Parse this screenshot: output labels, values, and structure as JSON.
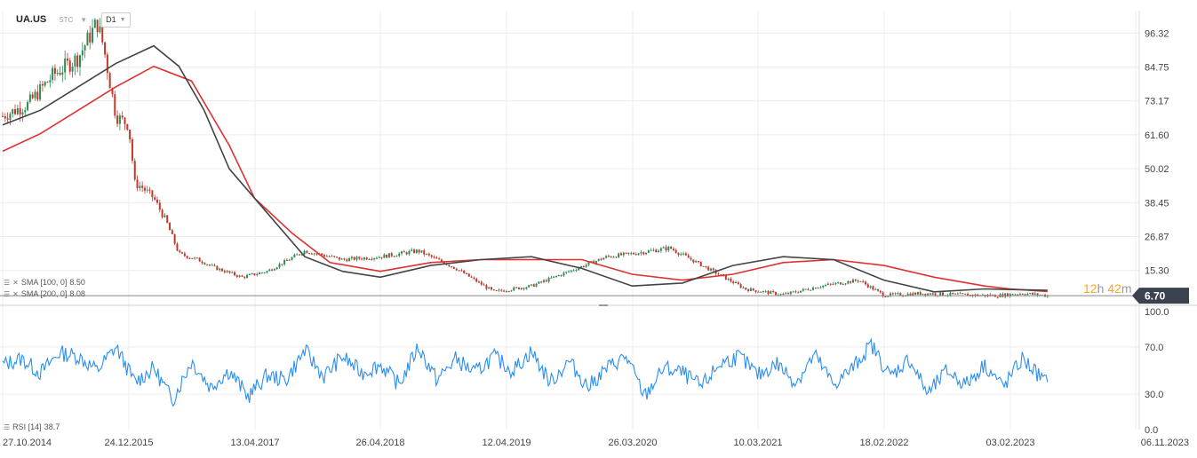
{
  "toolbar": {
    "symbol": "UA.US",
    "market": "STC",
    "timeframe": "D1"
  },
  "indicators": {
    "sma100": {
      "label": "SMA [100, 0]",
      "value": "8.50"
    },
    "sma200": {
      "label": "SMA [200, 0]",
      "value": "8.08"
    },
    "rsi": {
      "label": "RSI [14]",
      "value": "38.7"
    }
  },
  "price_tag": {
    "value": "6.70",
    "countdown_h": "12",
    "countdown_m": "42",
    "unit_h": "h",
    "unit_m": "m"
  },
  "colors": {
    "up": "#2e8b57",
    "down": "#c0392b",
    "sma100": "#444444",
    "sma200": "#e03030",
    "rsi": "#2b8ef0",
    "grid": "#ececec",
    "tag": "#3a4250"
  },
  "chart_data": [
    {
      "type": "line",
      "subtype": "candlestick-with-sma",
      "x_tick_labels": [
        "27.10.2014",
        "24.12.2015",
        "13.04.2017",
        "26.04.2018",
        "12.04.2019",
        "26.03.2020",
        "10.03.2021",
        "18.02.2022",
        "03.02.2023",
        "06.11.2023"
      ],
      "y_tick_labels": [
        "96.32",
        "84.75",
        "73.17",
        "61.60",
        "50.02",
        "38.45",
        "26.87",
        "15.30"
      ],
      "y_axis_side": "right",
      "ylim": [
        4.0,
        104.0
      ],
      "xlim": [
        0,
        9
      ],
      "grid": true,
      "last_price": 6.7,
      "series": [
        {
          "name": "SMA [100, 0]",
          "color": "#444444",
          "x": [
            0.0,
            0.3,
            0.6,
            0.9,
            1.2,
            1.4,
            1.6,
            1.8,
            2.1,
            2.4,
            2.7,
            3.0,
            3.4,
            3.8,
            4.2,
            4.6,
            5.0,
            5.4,
            5.8,
            6.2,
            6.6,
            7.0,
            7.4,
            7.8,
            8.0,
            8.3
          ],
          "values": [
            65,
            70,
            78,
            86,
            92,
            85,
            70,
            50,
            35,
            20,
            15,
            13,
            17,
            19,
            20,
            16,
            10,
            11,
            17,
            20,
            19,
            12,
            8,
            9,
            8.8,
            8.5
          ]
        },
        {
          "name": "SMA [200, 0]",
          "color": "#e03030",
          "x": [
            0.0,
            0.3,
            0.6,
            0.9,
            1.2,
            1.5,
            1.8,
            2.0,
            2.3,
            2.6,
            3.0,
            3.4,
            3.8,
            4.2,
            4.6,
            5.0,
            5.4,
            5.8,
            6.2,
            6.6,
            7.0,
            7.4,
            7.8,
            8.0,
            8.3
          ],
          "values": [
            56,
            62,
            70,
            78,
            85,
            80,
            58,
            40,
            28,
            18,
            15,
            18,
            19,
            19,
            19,
            14,
            12,
            14,
            18,
            19,
            17,
            13,
            10,
            9,
            8.1
          ]
        },
        {
          "name": "price",
          "color": "#2e8b57",
          "x": [
            0.0,
            0.2,
            0.4,
            0.6,
            0.75,
            0.8,
            0.9,
            1.0,
            1.05,
            1.1,
            1.2,
            1.3,
            1.4,
            1.55,
            1.7,
            1.9,
            2.1,
            2.4,
            2.7,
            3.0,
            3.3,
            3.6,
            3.9,
            4.2,
            4.5,
            4.8,
            5.0,
            5.3,
            5.6,
            5.9,
            6.2,
            6.5,
            6.8,
            7.0,
            7.3,
            7.6,
            7.9,
            8.1,
            8.3
          ],
          "values": [
            68,
            72,
            82,
            88,
            100,
            92,
            68,
            65,
            45,
            44,
            40,
            32,
            21,
            19,
            16,
            13,
            15,
            22,
            19,
            20,
            22,
            16,
            8,
            10,
            15,
            20,
            21,
            23,
            16,
            9,
            7,
            10,
            12,
            6.8,
            7.5,
            7,
            6.7,
            7.5,
            6.7
          ]
        }
      ]
    },
    {
      "type": "line",
      "subtype": "rsi",
      "y_tick_labels": [
        "100.0",
        "70.0",
        "30.0",
        "0.0"
      ],
      "ylim": [
        0,
        100
      ],
      "xlim": [
        0,
        9
      ],
      "levels": [
        70,
        30
      ],
      "grid": true,
      "series": [
        {
          "name": "RSI [14]",
          "color": "#2b8ef0",
          "x": [
            0.0,
            0.15,
            0.3,
            0.45,
            0.6,
            0.75,
            0.9,
            1.05,
            1.2,
            1.35,
            1.5,
            1.65,
            1.8,
            1.95,
            2.1,
            2.25,
            2.4,
            2.55,
            2.7,
            2.85,
            3.0,
            3.15,
            3.3,
            3.45,
            3.6,
            3.75,
            3.9,
            4.05,
            4.2,
            4.35,
            4.5,
            4.65,
            4.8,
            4.95,
            5.1,
            5.25,
            5.4,
            5.55,
            5.7,
            5.85,
            6.0,
            6.15,
            6.3,
            6.45,
            6.6,
            6.75,
            6.9,
            7.05,
            7.2,
            7.35,
            7.5,
            7.65,
            7.8,
            7.95,
            8.1,
            8.3
          ],
          "values": [
            55,
            60,
            48,
            65,
            62,
            50,
            70,
            40,
            52,
            25,
            58,
            36,
            50,
            28,
            46,
            42,
            67,
            45,
            62,
            48,
            55,
            38,
            70,
            42,
            60,
            48,
            62,
            50,
            66,
            40,
            58,
            36,
            52,
            62,
            28,
            52,
            48,
            36,
            56,
            62,
            46,
            56,
            40,
            63,
            38,
            52,
            72,
            45,
            60,
            30,
            50,
            38,
            55,
            36,
            60,
            38.7
          ]
        }
      ]
    }
  ]
}
